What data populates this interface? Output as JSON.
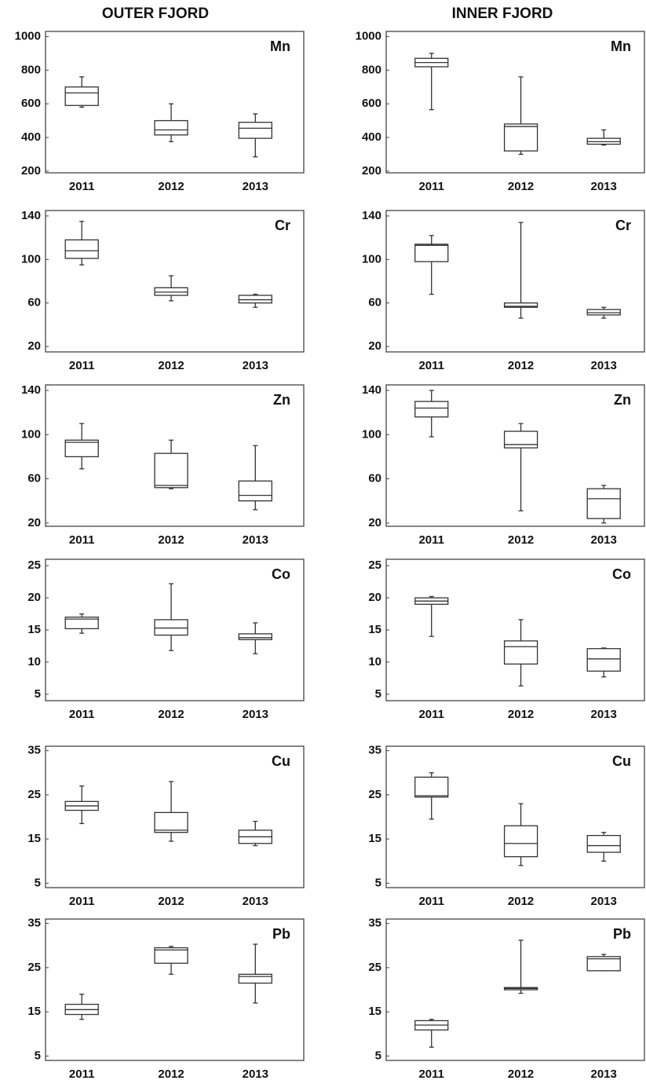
{
  "columns": [
    "OUTER FJORD",
    "INNER FJORD"
  ],
  "chart_data": [
    {
      "type": "box",
      "title": "Mn",
      "categories": [
        "2011",
        "2012",
        "2013"
      ],
      "ylim": [
        190,
        1030
      ],
      "yticks": [
        200,
        400,
        600,
        800,
        1000
      ],
      "boxes": [
        {
          "min": 580,
          "q1": 590,
          "median": 665,
          "q3": 700,
          "max": 760
        },
        {
          "min": 375,
          "q1": 415,
          "median": 445,
          "q3": 500,
          "max": 600
        },
        {
          "min": 285,
          "q1": 395,
          "median": 455,
          "q3": 490,
          "max": 540
        }
      ]
    },
    {
      "type": "box",
      "title": "Mn",
      "categories": [
        "2011",
        "2012",
        "2013"
      ],
      "ylim": [
        190,
        1030
      ],
      "yticks": [
        200,
        400,
        600,
        800,
        1000
      ],
      "boxes": [
        {
          "min": 565,
          "q1": 820,
          "median": 845,
          "q3": 870,
          "max": 900
        },
        {
          "min": 300,
          "q1": 320,
          "median": 465,
          "q3": 480,
          "max": 760
        },
        {
          "min": 355,
          "q1": 360,
          "median": 375,
          "q3": 395,
          "max": 445
        }
      ]
    },
    {
      "type": "box",
      "title": "Cr",
      "categories": [
        "2011",
        "2012",
        "2013"
      ],
      "ylim": [
        15,
        145
      ],
      "yticks": [
        20,
        60,
        100,
        140
      ],
      "boxes": [
        {
          "min": 95,
          "q1": 101,
          "median": 108,
          "q3": 118,
          "max": 135
        },
        {
          "min": 62,
          "q1": 67,
          "median": 70,
          "q3": 74,
          "max": 85
        },
        {
          "min": 56,
          "q1": 60,
          "median": 63,
          "q3": 67,
          "max": 68
        }
      ]
    },
    {
      "type": "box",
      "title": "Cr",
      "categories": [
        "2011",
        "2012",
        "2013"
      ],
      "ylim": [
        15,
        145
      ],
      "yticks": [
        20,
        60,
        100,
        140
      ],
      "boxes": [
        {
          "min": 68,
          "q1": 98,
          "median": 113,
          "q3": 114,
          "max": 122
        },
        {
          "min": 46,
          "q1": 56,
          "median": 57,
          "q3": 60,
          "max": 134
        },
        {
          "min": 46,
          "q1": 49,
          "median": 51,
          "q3": 54,
          "max": 56
        }
      ]
    },
    {
      "type": "box",
      "title": "Zn",
      "categories": [
        "2011",
        "2012",
        "2013"
      ],
      "ylim": [
        17,
        145
      ],
      "yticks": [
        20,
        60,
        100,
        140
      ],
      "boxes": [
        {
          "min": 69,
          "q1": 80,
          "median": 93,
          "q3": 95,
          "max": 110
        },
        {
          "min": 51,
          "q1": 52,
          "median": 54,
          "q3": 83,
          "max": 95
        },
        {
          "min": 32,
          "q1": 40,
          "median": 45,
          "q3": 58,
          "max": 90
        }
      ]
    },
    {
      "type": "box",
      "title": "Zn",
      "categories": [
        "2011",
        "2012",
        "2013"
      ],
      "ylim": [
        17,
        145
      ],
      "yticks": [
        20,
        60,
        100,
        140
      ],
      "boxes": [
        {
          "min": 98,
          "q1": 116,
          "median": 124,
          "q3": 130,
          "max": 140
        },
        {
          "min": 31,
          "q1": 88,
          "median": 91,
          "q3": 103,
          "max": 110
        },
        {
          "min": 20,
          "q1": 24,
          "median": 42,
          "q3": 51,
          "max": 54
        }
      ]
    },
    {
      "type": "box",
      "title": "Co",
      "categories": [
        "2011",
        "2012",
        "2013"
      ],
      "ylim": [
        4,
        26
      ],
      "yticks": [
        5,
        10,
        15,
        20,
        25
      ],
      "boxes": [
        {
          "min": 14.5,
          "q1": 15.2,
          "median": 16.7,
          "q3": 17,
          "max": 17.5
        },
        {
          "min": 11.8,
          "q1": 14.2,
          "median": 15.3,
          "q3": 16.6,
          "max": 22.2
        },
        {
          "min": 11.3,
          "q1": 13.5,
          "median": 13.8,
          "q3": 14.4,
          "max": 16.1
        }
      ]
    },
    {
      "type": "box",
      "title": "Co",
      "categories": [
        "2011",
        "2012",
        "2013"
      ],
      "ylim": [
        4,
        26
      ],
      "yticks": [
        5,
        10,
        15,
        20,
        25
      ],
      "boxes": [
        {
          "min": 14,
          "q1": 19,
          "median": 19.5,
          "q3": 20,
          "max": 20.2
        },
        {
          "min": 6.3,
          "q1": 9.7,
          "median": 12.4,
          "q3": 13.3,
          "max": 16.6
        },
        {
          "min": 7.7,
          "q1": 8.6,
          "median": 10.5,
          "q3": 12.1,
          "max": 12.2
        }
      ]
    },
    {
      "type": "box",
      "title": "Cu",
      "categories": [
        "2011",
        "2012",
        "2013"
      ],
      "ylim": [
        4,
        36
      ],
      "yticks": [
        5,
        15,
        25,
        35
      ],
      "boxes": [
        {
          "min": 18.5,
          "q1": 21.5,
          "median": 22.5,
          "q3": 23.5,
          "max": 27
        },
        {
          "min": 14.5,
          "q1": 16.5,
          "median": 17,
          "q3": 21,
          "max": 28
        },
        {
          "min": 13.5,
          "q1": 14,
          "median": 15.5,
          "q3": 17,
          "max": 19
        }
      ]
    },
    {
      "type": "box",
      "title": "Cu",
      "categories": [
        "2011",
        "2012",
        "2013"
      ],
      "ylim": [
        4,
        36
      ],
      "yticks": [
        5,
        15,
        25,
        35
      ],
      "boxes": [
        {
          "min": 19.5,
          "q1": 24.5,
          "median": 24.8,
          "q3": 29,
          "max": 30
        },
        {
          "min": 9,
          "q1": 11,
          "median": 14,
          "q3": 18,
          "max": 23
        },
        {
          "min": 10,
          "q1": 12,
          "median": 13.5,
          "q3": 15.8,
          "max": 16.5
        }
      ]
    },
    {
      "type": "box",
      "title": "Pb",
      "categories": [
        "2011",
        "2012",
        "2013"
      ],
      "ylim": [
        4,
        36
      ],
      "yticks": [
        5,
        15,
        25,
        35
      ],
      "boxes": [
        {
          "min": 13.3,
          "q1": 14.4,
          "median": 15.5,
          "q3": 16.7,
          "max": 19
        },
        {
          "min": 23.5,
          "q1": 26,
          "median": 29,
          "q3": 29.5,
          "max": 29.8
        },
        {
          "min": 17,
          "q1": 21.5,
          "median": 23,
          "q3": 23.5,
          "max": 30.3
        }
      ]
    },
    {
      "type": "box",
      "title": "Pb",
      "categories": [
        "2011",
        "2012",
        "2013"
      ],
      "ylim": [
        4,
        36
      ],
      "yticks": [
        5,
        15,
        25,
        35
      ],
      "boxes": [
        {
          "min": 7,
          "q1": 10.9,
          "median": 12,
          "q3": 13,
          "max": 13.3
        },
        {
          "min": 19.2,
          "q1": 20,
          "median": 20.3,
          "q3": 20.5,
          "max": 31.2
        },
        {
          "min": 24.3,
          "q1": 24.3,
          "median": 27,
          "q3": 27.5,
          "max": 28
        }
      ]
    }
  ]
}
